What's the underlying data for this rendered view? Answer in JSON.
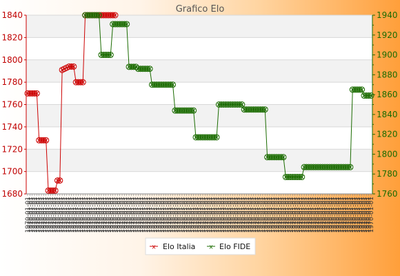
{
  "chart_data": {
    "type": "line",
    "title": "Grafico Elo",
    "y_left": {
      "ticks": [
        1680,
        1700,
        1720,
        1740,
        1760,
        1780,
        1800,
        1820,
        1840
      ],
      "lim": [
        1680,
        1840
      ],
      "color": "#cc0000"
    },
    "y_right": {
      "ticks": [
        1760,
        1780,
        1800,
        1820,
        1840,
        1860,
        1880,
        1900,
        1920,
        1940
      ],
      "lim": [
        1760,
        1940
      ],
      "color": "#1a6b00"
    },
    "n_points": 150,
    "x_tick_label": "1970-01-01",
    "grid": true,
    "legend_position": "bottom-center",
    "series": [
      {
        "name": "Elo Italia",
        "axis": "left",
        "color": "#cc0000",
        "x": [
          0,
          1,
          2,
          3,
          4,
          5,
          6,
          7,
          8,
          9,
          10,
          11,
          12,
          13,
          14,
          15,
          16,
          17,
          18,
          19,
          20,
          21,
          22,
          23,
          24,
          25,
          26,
          27,
          28,
          29,
          30,
          31,
          32,
          33,
          34,
          35,
          36,
          37,
          38
        ],
        "values": [
          1770,
          1770,
          1770,
          1770,
          1770,
          1728,
          1728,
          1728,
          1728,
          1683,
          1683,
          1683,
          1683,
          1692,
          1692,
          1791,
          1792,
          1793,
          1794,
          1794,
          1794,
          1780,
          1780,
          1780,
          1780,
          1840,
          1840,
          1840,
          1840,
          1840,
          1840,
          1840,
          1840,
          1840,
          1840,
          1840,
          1840,
          1840,
          1840
        ]
      },
      {
        "name": "Elo FIDE",
        "axis": "right",
        "color": "#1a6b00",
        "segments": [
          {
            "from": 25,
            "to": 31,
            "value": 1940
          },
          {
            "from": 32,
            "to": 36,
            "value": 1900
          },
          {
            "from": 37,
            "to": 43,
            "value": 1931
          },
          {
            "from": 44,
            "to": 47,
            "value": 1888
          },
          {
            "from": 48,
            "to": 53,
            "value": 1886
          },
          {
            "from": 54,
            "to": 63,
            "value": 1870
          },
          {
            "from": 64,
            "to": 72,
            "value": 1844
          },
          {
            "from": 73,
            "to": 82,
            "value": 1817
          },
          {
            "from": 83,
            "to": 93,
            "value": 1850
          },
          {
            "from": 94,
            "to": 103,
            "value": 1845
          },
          {
            "from": 104,
            "to": 111,
            "value": 1797
          },
          {
            "from": 112,
            "to": 119,
            "value": 1777
          },
          {
            "from": 120,
            "to": 140,
            "value": 1787
          },
          {
            "from": 141,
            "to": 145,
            "value": 1865
          },
          {
            "from": 146,
            "to": 149,
            "value": 1859
          }
        ]
      }
    ]
  }
}
